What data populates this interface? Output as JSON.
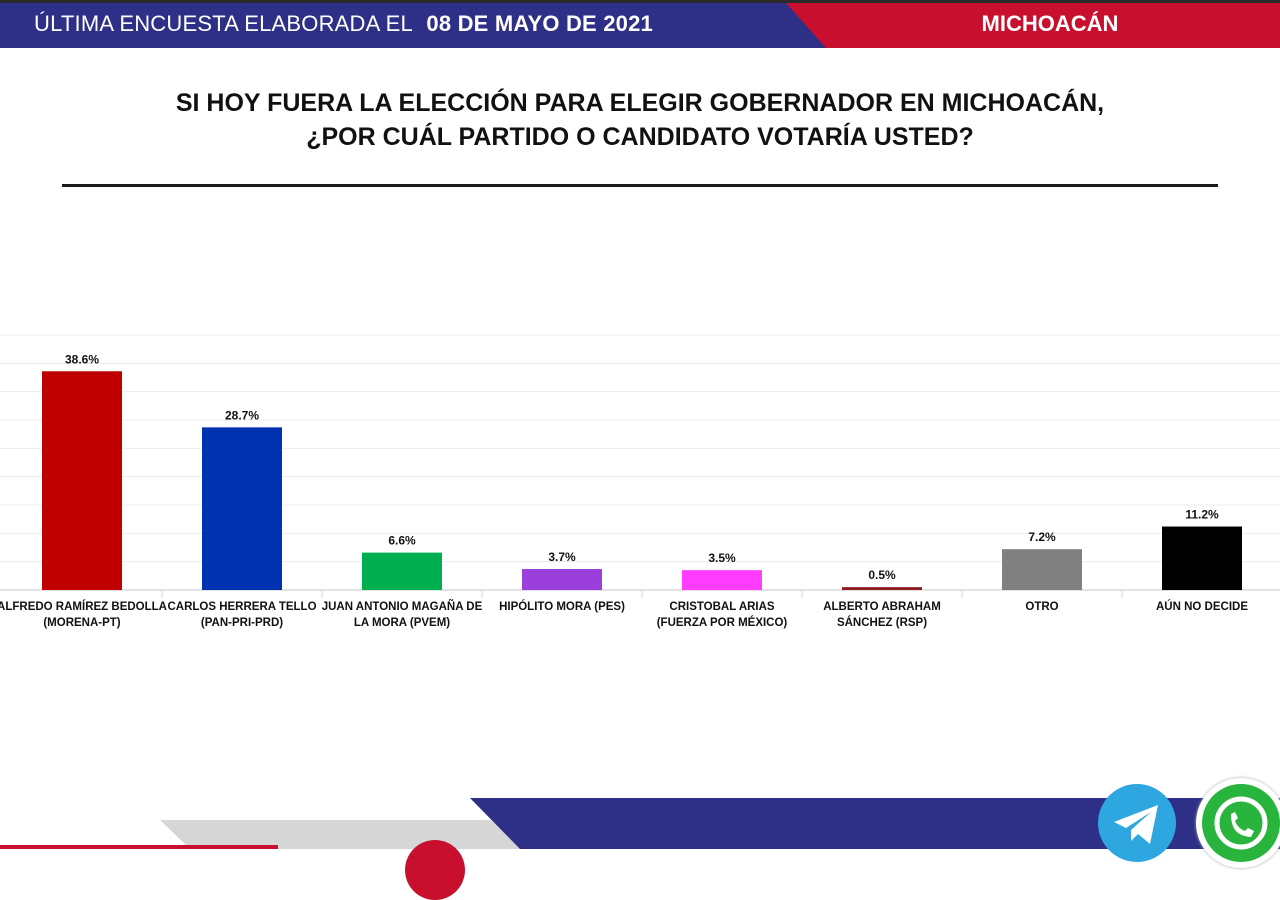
{
  "header": {
    "prefix": "ÚLTIMA ENCUESTA ELABORADA EL",
    "date": "08 DE MAYO DE 2021",
    "state": "MICHOACÁN"
  },
  "question": {
    "line1": "SI HOY FUERA LA ELECCIÓN PARA ELEGIR GOBERNADOR EN MICHOACÁN,",
    "line2": "¿POR CUÁL PARTIDO O CANDIDATO VOTARÍA USTED?"
  },
  "colors": {
    "header_blue": "#2e2f86",
    "header_red": "#c8102e"
  },
  "icons": [
    "telegram-icon",
    "whatsapp-icon"
  ],
  "chart_data": {
    "type": "bar",
    "title": "",
    "xlabel": "",
    "ylabel": "",
    "ylim": [
      0,
      45
    ],
    "grid": true,
    "categories": [
      [
        "ALFREDO RAMÍREZ BEDOLLA",
        "(MORENA-PT)"
      ],
      [
        "CARLOS HERRERA TELLO",
        "(PAN-PRI-PRD)"
      ],
      [
        "JUAN ANTONIO MAGAÑA DE",
        "LA MORA (PVEM)"
      ],
      [
        "HIPÓLITO MORA (PES)"
      ],
      [
        "CRISTOBAL ARIAS",
        "(FUERZA POR MÉXICO)"
      ],
      [
        "ALBERTO ABRAHAM",
        "SÁNCHEZ (RSP)"
      ],
      [
        "OTRO"
      ],
      [
        "AÚN NO DECIDE"
      ]
    ],
    "values": [
      38.6,
      28.7,
      6.6,
      3.7,
      3.5,
      0.5,
      7.2,
      11.2
    ],
    "value_labels": [
      "38.6%",
      "28.7%",
      "6.6%",
      "3.7%",
      "3.5%",
      "0.5%",
      "7.2%",
      "11.2%"
    ],
    "bar_colors": [
      "#c00000",
      "#0033b0",
      "#00b050",
      "#9b3fdc",
      "#ff3cff",
      "#8b1a1a",
      "#808080",
      "#000000"
    ]
  }
}
